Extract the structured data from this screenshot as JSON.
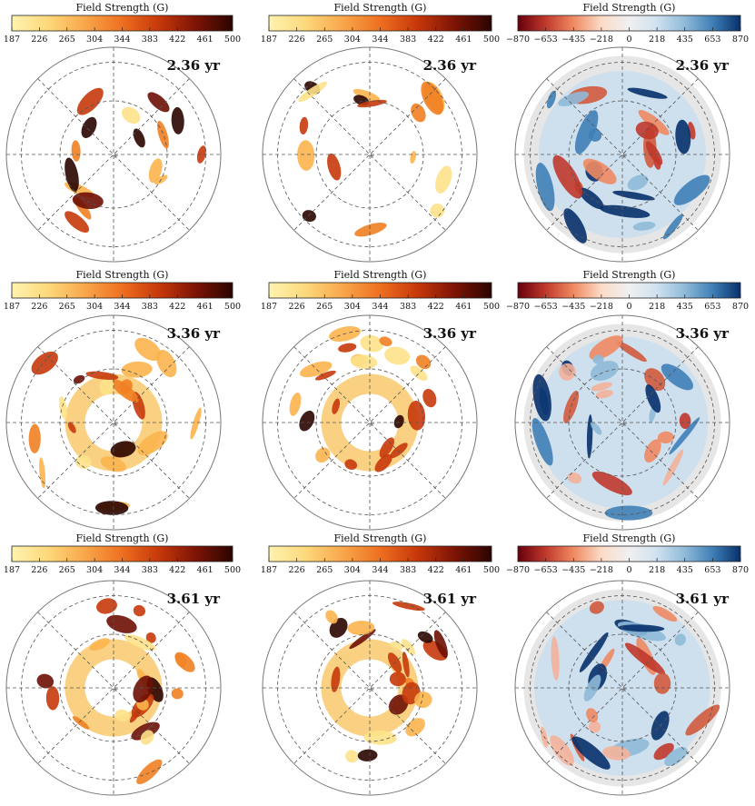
{
  "figure": {
    "colorbars": {
      "title": "Field Strength (G)",
      "sequential_ticks": [
        "187",
        "226",
        "265",
        "304",
        "344",
        "383",
        "422",
        "461",
        "500"
      ],
      "diverging_ticks": [
        "−870",
        "−653",
        "−435",
        "−218",
        "0",
        "218",
        "435",
        "653",
        "870"
      ]
    },
    "colors": {
      "sequential": [
        "#ffffff",
        "#fff3b0",
        "#fcd87a",
        "#f8a64b",
        "#ee6f1f",
        "#c6380b",
        "#7d1405",
        "#2a0400"
      ],
      "diverging": [
        "#67000d",
        "#c0392b",
        "#ef8a62",
        "#fcdbc7",
        "#f0f0f0",
        "#cfe1f0",
        "#8fbad8",
        "#3f7fb6",
        "#08306b"
      ],
      "grid": "#555555",
      "rim": "#777777"
    },
    "rows": [
      {
        "time_label": "2.36 yr",
        "panels": [
          {
            "type": "sequential",
            "time_label": "2.36 yr"
          },
          {
            "type": "sequential",
            "time_label": "2.36 yr"
          },
          {
            "type": "diverging",
            "time_label": "2.36 yr"
          }
        ]
      },
      {
        "time_label": "3.36 yr",
        "panels": [
          {
            "type": "sequential",
            "time_label": "3.36 yr"
          },
          {
            "type": "sequential",
            "time_label": "3.36 yr"
          },
          {
            "type": "diverging",
            "time_label": "3.36 yr"
          }
        ]
      },
      {
        "time_label": "3.61 yr",
        "panels": [
          {
            "type": "sequential",
            "time_label": "3.61 yr"
          },
          {
            "type": "sequential",
            "time_label": "3.61 yr"
          },
          {
            "type": "diverging",
            "time_label": "3.61 yr"
          }
        ]
      }
    ]
  },
  "chart_data": [
    {
      "type": "heatmap",
      "projection": "polar",
      "colorbar_title": "Field Strength (G)",
      "range": [
        187,
        500
      ],
      "time": "2.36 yr"
    },
    {
      "type": "heatmap",
      "projection": "polar",
      "colorbar_title": "Field Strength (G)",
      "range": [
        187,
        500
      ],
      "time": "2.36 yr"
    },
    {
      "type": "heatmap",
      "projection": "polar",
      "colorbar_title": "Field Strength (G)",
      "range": [
        -870,
        870
      ],
      "time": "2.36 yr"
    },
    {
      "type": "heatmap",
      "projection": "polar",
      "colorbar_title": "Field Strength (G)",
      "range": [
        187,
        500
      ],
      "time": "3.36 yr"
    },
    {
      "type": "heatmap",
      "projection": "polar",
      "colorbar_title": "Field Strength (G)",
      "range": [
        187,
        500
      ],
      "time": "3.36 yr"
    },
    {
      "type": "heatmap",
      "projection": "polar",
      "colorbar_title": "Field Strength (G)",
      "range": [
        -870,
        870
      ],
      "time": "3.36 yr"
    },
    {
      "type": "heatmap",
      "projection": "polar",
      "colorbar_title": "Field Strength (G)",
      "range": [
        187,
        500
      ],
      "time": "3.61 yr"
    },
    {
      "type": "heatmap",
      "projection": "polar",
      "colorbar_title": "Field Strength (G)",
      "range": [
        187,
        500
      ],
      "time": "3.61 yr"
    },
    {
      "type": "heatmap",
      "projection": "polar",
      "colorbar_title": "Field Strength (G)",
      "range": [
        -870,
        870
      ],
      "time": "3.61 yr"
    }
  ]
}
